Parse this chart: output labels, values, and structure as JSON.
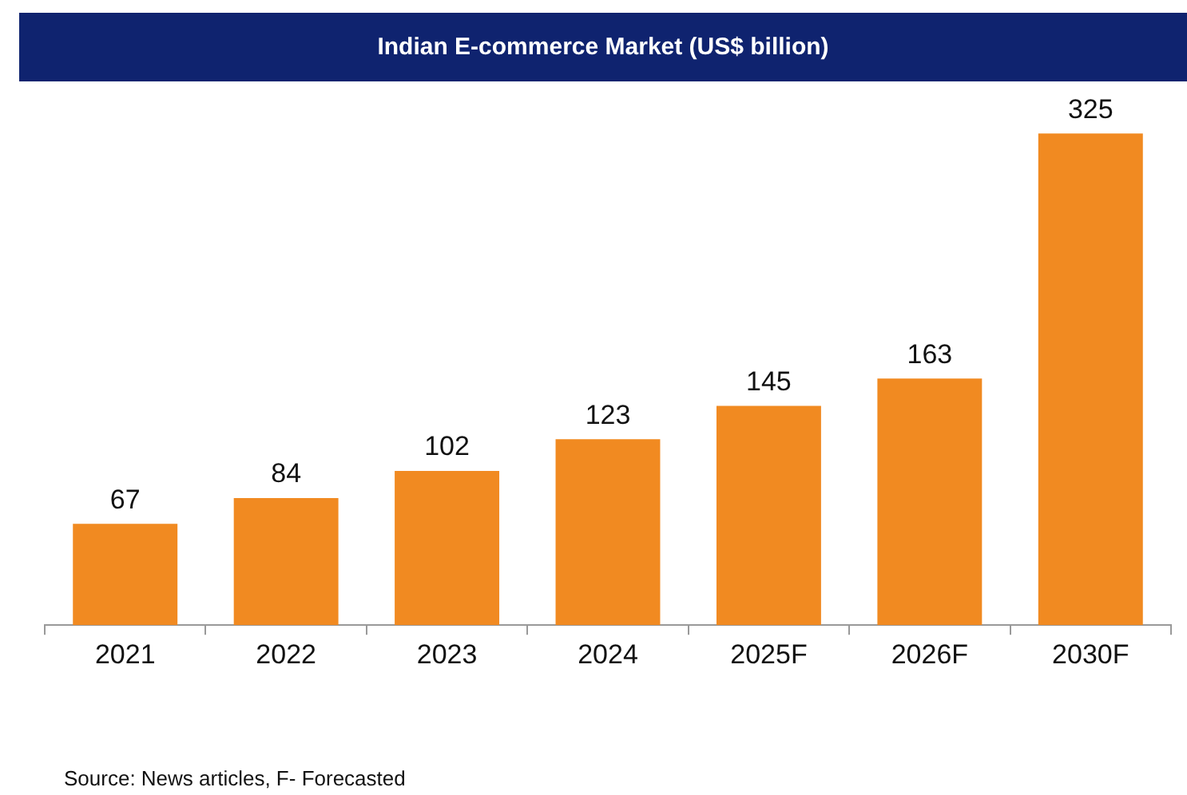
{
  "chart_data": {
    "type": "bar",
    "title": "Indian E-commerce Market (US$ billion)",
    "categories": [
      "2021",
      "2022",
      "2023",
      "2024",
      "2025F",
      "2026F",
      "2030F"
    ],
    "values": [
      67,
      84,
      102,
      123,
      145,
      163,
      325
    ],
    "color": "#f18a21",
    "data_labels": true,
    "grid": false,
    "legend": false,
    "annotations": [
      "Source: News articles, F- Forecasted"
    ]
  }
}
